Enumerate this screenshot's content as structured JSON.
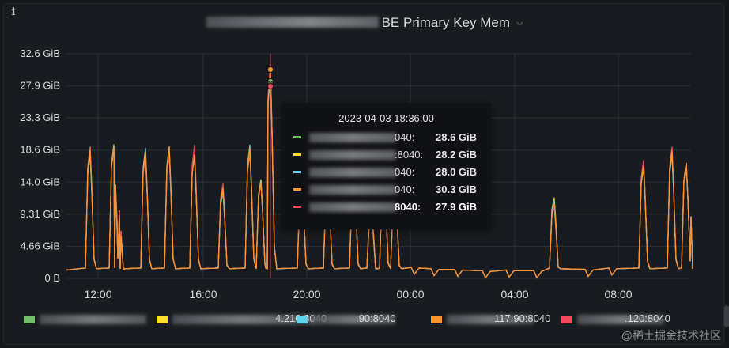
{
  "panel": {
    "title": "BE Primary Key Mem",
    "info_icon": "info-icon",
    "menu_icon": "chevron-down-icon"
  },
  "colors": {
    "green": "#73bf69",
    "yellow": "#fade2a",
    "cyan": "#5fd1e8",
    "orange": "#ff9830",
    "red": "#f2495c",
    "grid": "#2c3035",
    "axis_text": "#d8d9da"
  },
  "chart_data": {
    "type": "line",
    "yticks": [
      "0 B",
      "4.66 GiB",
      "9.31 GiB",
      "14.0 GiB",
      "18.6 GiB",
      "23.3 GiB",
      "27.9 GiB",
      "32.6 GiB"
    ],
    "xticks": [
      "12:00",
      "16:00",
      "20:00",
      "00:00",
      "04:00",
      "08:00"
    ],
    "ylim": [
      0,
      32.6
    ],
    "unit": "GiB",
    "hover_time": "2023-04-03 18:36:00",
    "series": [
      {
        "color": "#73bf69",
        "hover_value": 28.6
      },
      {
        "color": "#fade2a",
        "hover_value": 28.2
      },
      {
        "color": "#5fd1e8",
        "hover_value": 28.0
      },
      {
        "color": "#ff9830",
        "hover_value": 30.3
      },
      {
        "color": "#f2495c",
        "hover_value": 27.9
      }
    ]
  },
  "tooltip": {
    "time": "2023-04-03 18:36:00",
    "rows": [
      {
        "port": "040:",
        "value": "28.6 GiB",
        "color": "#73bf69"
      },
      {
        "port": ":8040:",
        "value": "28.2 GiB",
        "color": "#fade2a"
      },
      {
        "port": "040:",
        "value": "28.0 GiB",
        "color": "#5fd1e8"
      },
      {
        "port": "040:",
        "value": "30.3 GiB",
        "color": "#ff9830"
      },
      {
        "port": "8040:",
        "value": "27.9 GiB",
        "color": "#f2495c"
      }
    ]
  },
  "legend": {
    "items": [
      {
        "color": "#73bf69",
        "text": ""
      },
      {
        "color": "#fade2a",
        "text": "4.216:8040"
      },
      {
        "color": "#5fd1e8",
        "text": ".90:8040"
      },
      {
        "color": "#ff9830",
        "text": "117.90:8040"
      },
      {
        "color": "#f2495c",
        "text": ".120:8040"
      }
    ]
  },
  "watermark": "@稀土掘金技术社区"
}
